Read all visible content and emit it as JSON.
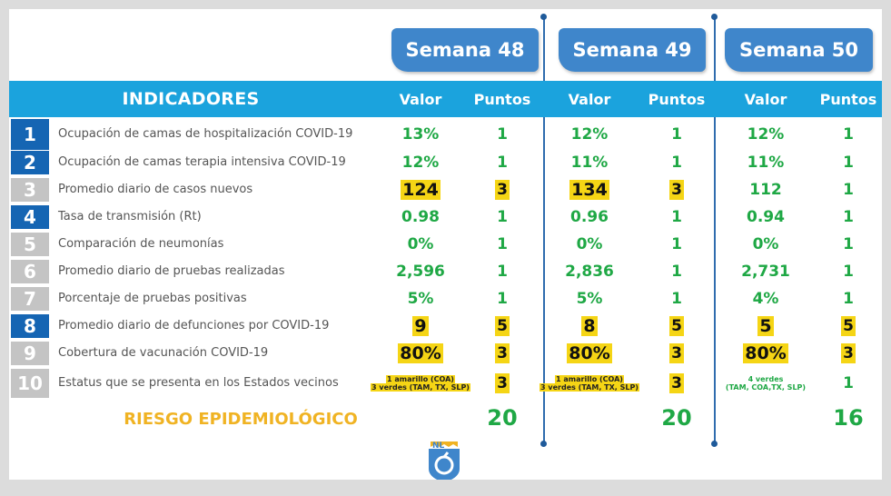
{
  "weeks": [
    "Semana 48",
    "Semana 49",
    "Semana 50"
  ],
  "headers": {
    "indicators": "INDICADORES",
    "value": "Valor",
    "points": "Puntos"
  },
  "colors": {
    "tab_blue": "#3f86cb",
    "header_cyan": "#1ba3dd",
    "row_blue": "#1565b3",
    "row_gray": "#c4c4c4",
    "highlight_yellow": "#f5d515",
    "value_green": "#1fa845",
    "risk_orange": "#f0b323"
  },
  "rows": [
    {
      "num": "1",
      "label": "Ocupación de camas de hospitalización COVID-19",
      "badge": "blue",
      "cells": [
        {
          "v": "13%",
          "p": "1",
          "vh": false,
          "ph": false
        },
        {
          "v": "12%",
          "p": "1",
          "vh": false,
          "ph": false
        },
        {
          "v": "12%",
          "p": "1",
          "vh": false,
          "ph": false
        }
      ]
    },
    {
      "num": "2",
      "label": "Ocupación de camas terapia intensiva COVID-19",
      "badge": "blue",
      "cells": [
        {
          "v": "12%",
          "p": "1",
          "vh": false,
          "ph": false
        },
        {
          "v": "11%",
          "p": "1",
          "vh": false,
          "ph": false
        },
        {
          "v": "11%",
          "p": "1",
          "vh": false,
          "ph": false
        }
      ]
    },
    {
      "num": "3",
      "label": "Promedio diario de casos nuevos",
      "badge": "gray",
      "cells": [
        {
          "v": "124",
          "p": "3",
          "vh": true,
          "ph": true
        },
        {
          "v": "134",
          "p": "3",
          "vh": true,
          "ph": true
        },
        {
          "v": "112",
          "p": "1",
          "vh": false,
          "ph": false
        }
      ]
    },
    {
      "num": "4",
      "label": "Tasa de transmisión (Rt)",
      "badge": "blue",
      "cells": [
        {
          "v": "0.98",
          "p": "1",
          "vh": false,
          "ph": false
        },
        {
          "v": "0.96",
          "p": "1",
          "vh": false,
          "ph": false
        },
        {
          "v": "0.94",
          "p": "1",
          "vh": false,
          "ph": false
        }
      ]
    },
    {
      "num": "5",
      "label": "Comparación de neumonías",
      "badge": "gray",
      "cells": [
        {
          "v": "0%",
          "p": "1",
          "vh": false,
          "ph": false
        },
        {
          "v": "0%",
          "p": "1",
          "vh": false,
          "ph": false
        },
        {
          "v": "0%",
          "p": "1",
          "vh": false,
          "ph": false
        }
      ]
    },
    {
      "num": "6",
      "label": "Promedio diario de pruebas realizadas",
      "badge": "gray",
      "cells": [
        {
          "v": "2,596",
          "p": "1",
          "vh": false,
          "ph": false
        },
        {
          "v": "2,836",
          "p": "1",
          "vh": false,
          "ph": false
        },
        {
          "v": "2,731",
          "p": "1",
          "vh": false,
          "ph": false
        }
      ]
    },
    {
      "num": "7",
      "label": "Porcentaje de pruebas positivas",
      "badge": "gray",
      "cells": [
        {
          "v": "5%",
          "p": "1",
          "vh": false,
          "ph": false
        },
        {
          "v": "5%",
          "p": "1",
          "vh": false,
          "ph": false
        },
        {
          "v": "4%",
          "p": "1",
          "vh": false,
          "ph": false
        }
      ]
    },
    {
      "num": "8",
      "label": "Promedio diario de defunciones por COVID-19",
      "badge": "blue",
      "cells": [
        {
          "v": "9",
          "p": "5",
          "vh": true,
          "ph": true
        },
        {
          "v": "8",
          "p": "5",
          "vh": true,
          "ph": true
        },
        {
          "v": "5",
          "p": "5",
          "vh": true,
          "ph": true
        }
      ]
    },
    {
      "num": "9",
      "label": "Cobertura de vacunación COVID-19",
      "badge": "gray",
      "cells": [
        {
          "v": "80%",
          "p": "3",
          "vh": true,
          "ph": true
        },
        {
          "v": "80%",
          "p": "3",
          "vh": true,
          "ph": true
        },
        {
          "v": "80%",
          "p": "3",
          "vh": true,
          "ph": true
        }
      ]
    },
    {
      "num": "10",
      "label": "Estatus que se presenta en los Estados vecinos",
      "badge": "gray",
      "cells": [
        {
          "note": [
            "1 amarillo (COA)",
            "3 verdes (TAM, TX, SLP)"
          ],
          "note_style": "yellow",
          "p": "3",
          "ph": true
        },
        {
          "note": [
            "1 amarillo (COA)",
            "3 verdes (TAM, TX, SLP)"
          ],
          "note_style": "yellow",
          "p": "3",
          "ph": true
        },
        {
          "note": [
            "4 verdes",
            "(TAM, COA,TX, SLP)"
          ],
          "note_style": "green",
          "p": "1",
          "ph": false
        }
      ]
    }
  ],
  "risk": {
    "label": "RIESGO EPIDEMIOLÓGICO",
    "totals": [
      "20",
      "20",
      "16"
    ]
  },
  "logo": {
    "text": "NL",
    "icon": "nuevo-leon-shield-icon"
  }
}
